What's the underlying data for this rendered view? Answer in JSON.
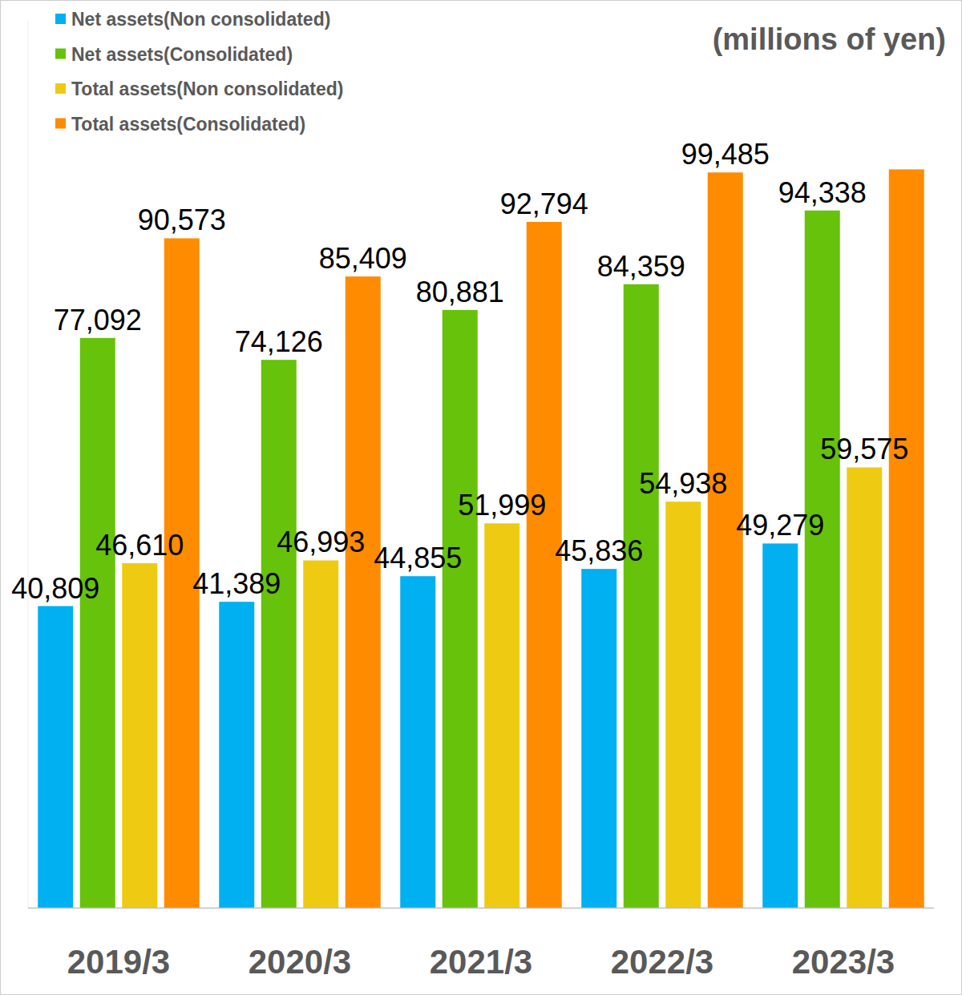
{
  "chart_data": {
    "type": "bar",
    "ylabel": "(millions of yen)",
    "categories": [
      "2019/3",
      "2020/3",
      "2021/3",
      "2022/3",
      "2023/3"
    ],
    "series": [
      {
        "name": "Net assets(Non consolidated)",
        "color": "#00b0f0",
        "values": [
          40809,
          41389,
          44855,
          45836,
          49279
        ],
        "value_labels": [
          "40,809",
          "41,389",
          "44,855",
          "45,836",
          "49,279"
        ]
      },
      {
        "name": "Net assets(Consolidated)",
        "color": "#66c20a",
        "values": [
          77092,
          74126,
          80881,
          84359,
          94338
        ],
        "value_labels": [
          "77,092",
          "74,126",
          "80,881",
          "84,359",
          "94,338"
        ]
      },
      {
        "name": "Total assets(Non consolidated)",
        "color": "#eecb12",
        "values": [
          46610,
          46993,
          51999,
          54938,
          59575
        ],
        "value_labels": [
          "46,610",
          "46,993",
          "51,999",
          "54,938",
          "59,575"
        ]
      },
      {
        "name": "Total assets(Consolidated)",
        "color": "#ff8c00",
        "values": [
          90573,
          85409,
          92794,
          99485,
          99900
        ],
        "value_labels": [
          "90,573",
          "85,409",
          "92,794",
          "99,485",
          null
        ]
      }
    ],
    "ylim": [
      0,
      120000
    ],
    "yticks": [],
    "grid": false,
    "tick_labels": false,
    "legend": "top-left",
    "data_labels": true
  }
}
